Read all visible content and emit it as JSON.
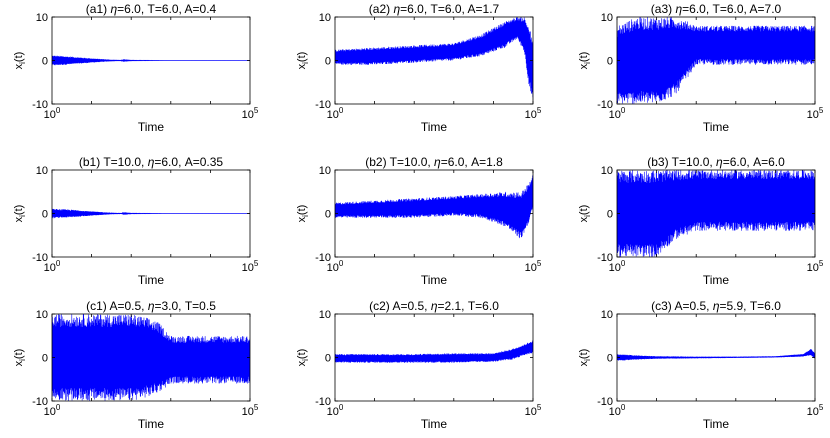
{
  "colors": {
    "series": "#0000ff",
    "axes": "#000000"
  },
  "chart_data": [
    {
      "type": "line",
      "title": "(a1) η=6.0, T=6.0, A=0.4",
      "title_parts": [
        "(a1) ",
        "η",
        "=6.0, T=6.0, A=0.4"
      ],
      "xlabel": "Time",
      "ylabel": "x_i(t)",
      "x_scale": "log",
      "xlim": [
        1,
        100000
      ],
      "ylim": [
        -10,
        10
      ],
      "x_ticks": [
        "1",
        "100000"
      ],
      "x_tick_labels": [
        {
          "base": "10",
          "exp": "0"
        },
        {
          "base": "10",
          "exp": "5"
        }
      ],
      "y_ticks": [
        -10,
        0,
        10
      ],
      "series": [
        {
          "x": [
            1,
            3,
            10,
            30,
            100,
            1000,
            100000
          ],
          "upper": [
            1.2,
            0.9,
            0.5,
            0.2,
            0.05,
            0.01,
            0.01
          ],
          "lower": [
            -1.2,
            -0.9,
            -0.5,
            -0.2,
            -0.05,
            -0.01,
            -0.01
          ]
        }
      ]
    },
    {
      "type": "line",
      "title": "(a2) η=6.0, T=6.0, A=1.7",
      "title_parts": [
        "(a2) ",
        "η",
        "=6.0, T=6.0, A=1.7"
      ],
      "xlabel": "Time",
      "ylabel": "x_i(t)",
      "x_scale": "log",
      "xlim": [
        1,
        100000
      ],
      "ylim": [
        -10,
        10
      ],
      "x_ticks": [
        "1",
        "100000"
      ],
      "x_tick_labels": [
        {
          "base": "10",
          "exp": "0"
        },
        {
          "base": "10",
          "exp": "5"
        }
      ],
      "y_ticks": [
        -10,
        0,
        10
      ],
      "series": [
        {
          "x": [
            1,
            10,
            100,
            1000,
            5000,
            20000,
            40000,
            60000,
            80000,
            100000
          ],
          "upper": [
            2.5,
            3,
            3.5,
            4,
            6,
            9,
            10,
            10,
            8,
            4
          ],
          "lower": [
            -1,
            -1,
            -0.5,
            0,
            1,
            3,
            5,
            2,
            -6,
            -10
          ]
        }
      ]
    },
    {
      "type": "line",
      "title": "(a3) η=6.0, T=6.0, A=7.0",
      "title_parts": [
        "(a3) ",
        "η",
        "=6.0, T=6.0, A=7.0"
      ],
      "xlabel": "Time",
      "ylabel": "x_i(t)",
      "x_scale": "log",
      "xlim": [
        1,
        100000
      ],
      "ylim": [
        -10,
        10
      ],
      "x_ticks": [
        "1",
        "100000"
      ],
      "x_tick_labels": [
        {
          "base": "10",
          "exp": "0"
        },
        {
          "base": "10",
          "exp": "5"
        }
      ],
      "y_ticks": [
        -10,
        0,
        10
      ],
      "series": [
        {
          "x": [
            1,
            3,
            10,
            30,
            60,
            100
          ],
          "upper": [
            8,
            10,
            10,
            10,
            9,
            8
          ],
          "lower": [
            -10,
            -10,
            -10,
            -8,
            -4,
            -1
          ]
        }
      ]
    },
    {
      "type": "line",
      "title": "(b1) T=10.0, η=6.0, A=0.35",
      "title_parts": [
        "(b1) T=10.0, ",
        "η",
        "=6.0, A=0.35"
      ],
      "xlabel": "Time",
      "ylabel": "x_i(t)",
      "x_scale": "log",
      "xlim": [
        1,
        100000
      ],
      "ylim": [
        -10,
        10
      ],
      "x_ticks": [
        "1",
        "100000"
      ],
      "x_tick_labels": [
        {
          "base": "10",
          "exp": "0"
        },
        {
          "base": "10",
          "exp": "5"
        }
      ],
      "y_ticks": [
        -10,
        0,
        10
      ],
      "series": [
        {
          "x": [
            1,
            3,
            10,
            30,
            100,
            1000,
            100000
          ],
          "upper": [
            1.1,
            0.9,
            0.5,
            0.2,
            0.05,
            0.01,
            0.01
          ],
          "lower": [
            -1.1,
            -0.9,
            -0.5,
            -0.2,
            -0.05,
            -0.01,
            -0.01
          ]
        }
      ]
    },
    {
      "type": "line",
      "title": "(b2) T=10.0, η=6.0, A=1.8",
      "title_parts": [
        "(b2) T=10.0, ",
        "η",
        "=6.0, A=1.8"
      ],
      "xlabel": "Time",
      "ylabel": "x_i(t)",
      "x_scale": "log",
      "xlim": [
        1,
        100000
      ],
      "ylim": [
        -10,
        10
      ],
      "x_ticks": [
        "1",
        "100000"
      ],
      "x_tick_labels": [
        {
          "base": "10",
          "exp": "0"
        },
        {
          "base": "10",
          "exp": "5"
        }
      ],
      "y_ticks": [
        -10,
        0,
        10
      ],
      "series": [
        {
          "x": [
            1,
            10,
            100,
            1000,
            5000,
            20000,
            50000,
            80000,
            100000
          ],
          "upper": [
            2.5,
            3,
            3.5,
            4,
            4.5,
            5,
            5,
            7,
            9
          ],
          "lower": [
            -1,
            -1,
            -1,
            -0.5,
            -1,
            -3,
            -6,
            -2,
            1
          ]
        }
      ]
    },
    {
      "type": "line",
      "title": "(b3) T=10.0, η=6.0, A=6.0",
      "title_parts": [
        "(b3) T=10.0, ",
        "η",
        "=6.0, A=6.0"
      ],
      "xlabel": "Time",
      "ylabel": "x_i(t)",
      "x_scale": "log",
      "xlim": [
        1,
        100000
      ],
      "ylim": [
        -10,
        10
      ],
      "x_ticks": [
        "1",
        "100000"
      ],
      "x_tick_labels": [
        {
          "base": "10",
          "exp": "0"
        },
        {
          "base": "10",
          "exp": "5"
        }
      ],
      "y_ticks": [
        -10,
        0,
        10
      ],
      "series": [
        {
          "x": [
            1,
            10,
            30,
            100,
            1000,
            10000,
            100000
          ],
          "upper": [
            10,
            10,
            10,
            10,
            10,
            10,
            10
          ],
          "lower": [
            -10,
            -10,
            -6,
            -4,
            -4,
            -4,
            -4
          ]
        }
      ]
    },
    {
      "type": "line",
      "title": "(c1) A=0.5, η=3.0, T=0.5",
      "title_parts": [
        "(c1) A=0.5, ",
        "η",
        "=3.0, T=0.5"
      ],
      "xlabel": "Time",
      "ylabel": "x_i(t)",
      "x_scale": "log",
      "xlim": [
        1,
        100000
      ],
      "ylim": [
        -10,
        10
      ],
      "x_ticks": [
        "1",
        "100000"
      ],
      "x_tick_labels": [
        {
          "base": "10",
          "exp": "0"
        },
        {
          "base": "10",
          "exp": "5"
        }
      ],
      "y_ticks": [
        -10,
        0,
        10
      ],
      "series": [
        {
          "x": [
            1,
            10,
            100,
            300,
            500,
            1000
          ],
          "upper": [
            10,
            10,
            10,
            9,
            8,
            5
          ],
          "lower": [
            -10,
            -10,
            -10,
            -9,
            -8,
            -6
          ]
        }
      ]
    },
    {
      "type": "line",
      "title": "(c2) A=0.5, η=2.1, T=6.0",
      "title_parts": [
        "(c2) A=0.5, ",
        "η",
        "=2.1, T=6.0"
      ],
      "xlabel": "Time",
      "ylabel": "x_i(t)",
      "x_scale": "log",
      "xlim": [
        1,
        100000
      ],
      "ylim": [
        -10,
        10
      ],
      "x_ticks": [
        "1",
        "100000"
      ],
      "x_tick_labels": [
        {
          "base": "10",
          "exp": "0"
        },
        {
          "base": "10",
          "exp": "5"
        }
      ],
      "y_ticks": [
        -10,
        0,
        10
      ],
      "series": [
        {
          "x": [
            1,
            10,
            100,
            1000,
            10000,
            30000,
            60000,
            100000
          ],
          "upper": [
            0.8,
            0.8,
            0.8,
            1,
            1,
            2,
            3,
            4
          ],
          "lower": [
            -1.2,
            -1.2,
            -1.2,
            -1.2,
            -1,
            -0.5,
            0.5,
            1
          ]
        }
      ]
    },
    {
      "type": "line",
      "title": "(c3) A=0.5, η=5.9, T=6.0",
      "title_parts": [
        "(c3) A=0.5, ",
        "η",
        "=5.9, T=6.0"
      ],
      "xlabel": "Time",
      "ylabel": "x_i(t)",
      "x_scale": "log",
      "xlim": [
        1,
        100000
      ],
      "ylim": [
        -10,
        10
      ],
      "x_ticks": [
        "1",
        "100000"
      ],
      "x_tick_labels": [
        {
          "base": "10",
          "exp": "0"
        },
        {
          "base": "10",
          "exp": "5"
        }
      ],
      "y_ticks": [
        -10,
        0,
        10
      ],
      "series": [
        {
          "x": [
            1,
            3,
            10,
            100,
            1000,
            10000,
            50000,
            80000,
            100000
          ],
          "upper": [
            0.8,
            0.5,
            0.3,
            0.2,
            0.2,
            0.3,
            0.8,
            2,
            1
          ],
          "lower": [
            -0.8,
            -0.5,
            -0.3,
            -0.2,
            -0.1,
            0,
            0.2,
            0.5,
            -0.5
          ]
        }
      ]
    }
  ]
}
